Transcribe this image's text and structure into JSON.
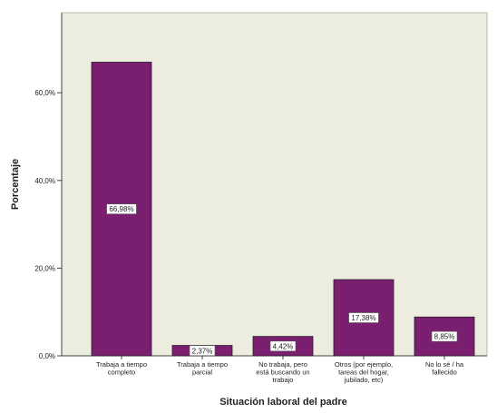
{
  "chart_data": {
    "type": "bar",
    "title": "",
    "xlabel": "Situación laboral del padre",
    "ylabel": "Porcentaje",
    "ylim": [
      0,
      78
    ],
    "grid": false,
    "yticks": [
      {
        "value": 0,
        "label": "0,0%"
      },
      {
        "value": 20,
        "label": "20,0%"
      },
      {
        "value": 40,
        "label": "40,0%"
      },
      {
        "value": 60,
        "label": "60,0%"
      }
    ],
    "categories": [
      {
        "key": "tiempo-completo",
        "lines": [
          "Trabaja a tiempo",
          "completo"
        ]
      },
      {
        "key": "tiempo-parcial",
        "lines": [
          "Trabaja a tiempo",
          "parcial"
        ]
      },
      {
        "key": "buscando-trabajo",
        "lines": [
          "No trabaja, pero",
          "está buscando un",
          "trabajo"
        ]
      },
      {
        "key": "otros",
        "lines": [
          "Otros (por ejemplo,",
          "tareas del hogar,",
          "jubilado, etc)"
        ]
      },
      {
        "key": "no-lo-se",
        "lines": [
          "No lo sé / ha",
          "fallecido"
        ]
      }
    ],
    "values": [
      66.98,
      2.37,
      4.42,
      17.38,
      8.85
    ],
    "value_labels": [
      "66,98%",
      "2,37%",
      "4,42%",
      "17,38%",
      "8,85%"
    ],
    "colors": {
      "plot_background": "#ececdf",
      "bar_fill": "#7a1f6f",
      "bar_stroke": "#2a1a2a",
      "label_box": "#ffffff",
      "axis": "#444444",
      "text": "#222222"
    }
  }
}
